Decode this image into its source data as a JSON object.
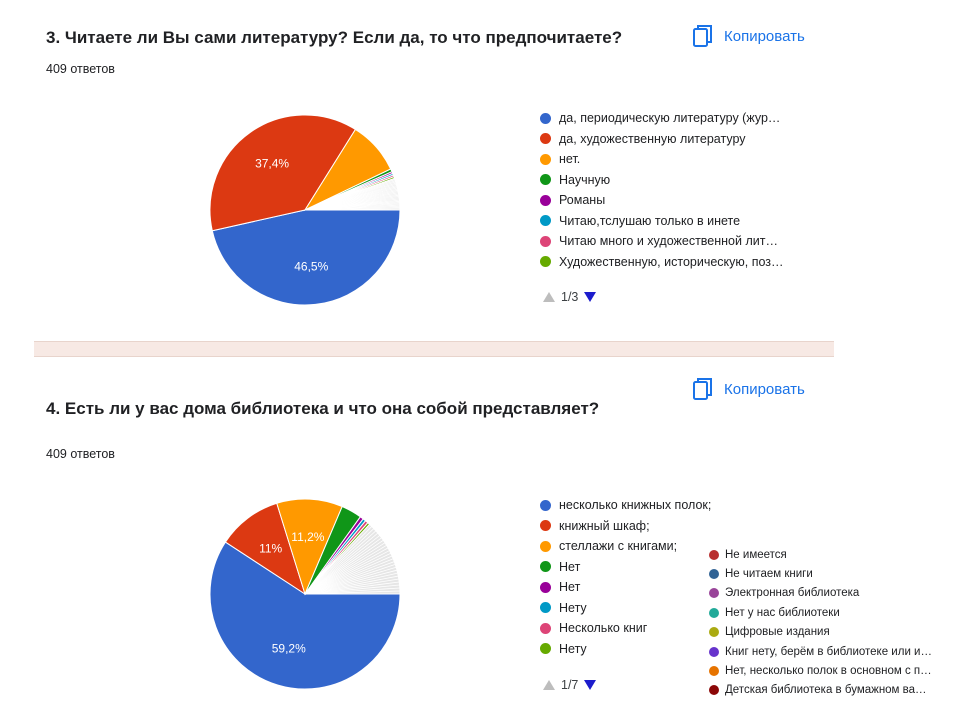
{
  "copy_label": "Копировать",
  "chart_data": [
    {
      "type": "pie",
      "title": "3. Читаете ли Вы сами литературу? Если да, то что предпочитаете?",
      "responses": "409 ответов",
      "pager": "1/3",
      "slices": [
        {
          "label": "да, периодическую литературу (жур…",
          "value": 46.5,
          "color": "#3366cc",
          "show_pct": "46,5%"
        },
        {
          "label": "да, художественную литературу",
          "value": 37.4,
          "color": "#dc3912",
          "show_pct": "37,4%"
        },
        {
          "label": "нет.",
          "value": 9.0,
          "color": "#ff9900"
        },
        {
          "label": "Научную",
          "value": 0.5,
          "color": "#109618"
        },
        {
          "label": "Романы",
          "value": 0.3,
          "color": "#990099"
        },
        {
          "label": "Читаю,тслушаю только в инете",
          "value": 0.3,
          "color": "#0099c6"
        },
        {
          "label": "Читаю много и художественной лит…",
          "value": 0.3,
          "color": "#dd4477"
        },
        {
          "label": "Художественную, историческую, поз…",
          "value": 0.3,
          "color": "#66aa00"
        },
        {
          "value": 5.4,
          "color": "#e6e6e6"
        }
      ]
    },
    {
      "type": "pie",
      "title": "4.   Есть ли у вас дома библиотека и что она собой представляет?",
      "responses": "409 ответов",
      "pager": "1/7",
      "slices": [
        {
          "label": "несколько книжных полок;",
          "value": 59.2,
          "color": "#3366cc",
          "show_pct": "59,2%"
        },
        {
          "label": "книжный шкаф;",
          "value": 11.0,
          "color": "#dc3912",
          "show_pct": "11%"
        },
        {
          "label": "стеллажи с книгами;",
          "value": 11.2,
          "color": "#ff9900",
          "show_pct": "11,2%"
        },
        {
          "label": "Нет",
          "value": 3.5,
          "color": "#109618"
        },
        {
          "label": "Нет",
          "value": 0.6,
          "color": "#990099"
        },
        {
          "label": "Нету",
          "value": 0.5,
          "color": "#0099c6"
        },
        {
          "label": "Несколько книг",
          "value": 0.5,
          "color": "#dd4477"
        },
        {
          "label": "Нету",
          "value": 0.4,
          "color": "#66aa00"
        },
        {
          "value": 13.1,
          "color": "#e6e6e6"
        }
      ],
      "legend_extra": [
        {
          "label": "Не имеется",
          "color": "#b82e2e"
        },
        {
          "label": "Не читаем книги",
          "color": "#316395"
        },
        {
          "label": "Электронная библиотека",
          "color": "#994499"
        },
        {
          "label": "Нет у нас библиотеки",
          "color": "#22aa99"
        },
        {
          "label": "Цифровые издания",
          "color": "#aaaa11"
        },
        {
          "label": "Книг нету, берём в библиотеке или и…",
          "color": "#6633cc"
        },
        {
          "label": "Нет, несколько полок в основном с п…",
          "color": "#e67300"
        },
        {
          "label": "Детская библиотека в бумажном ва…",
          "color": "#8b0707"
        }
      ]
    }
  ]
}
